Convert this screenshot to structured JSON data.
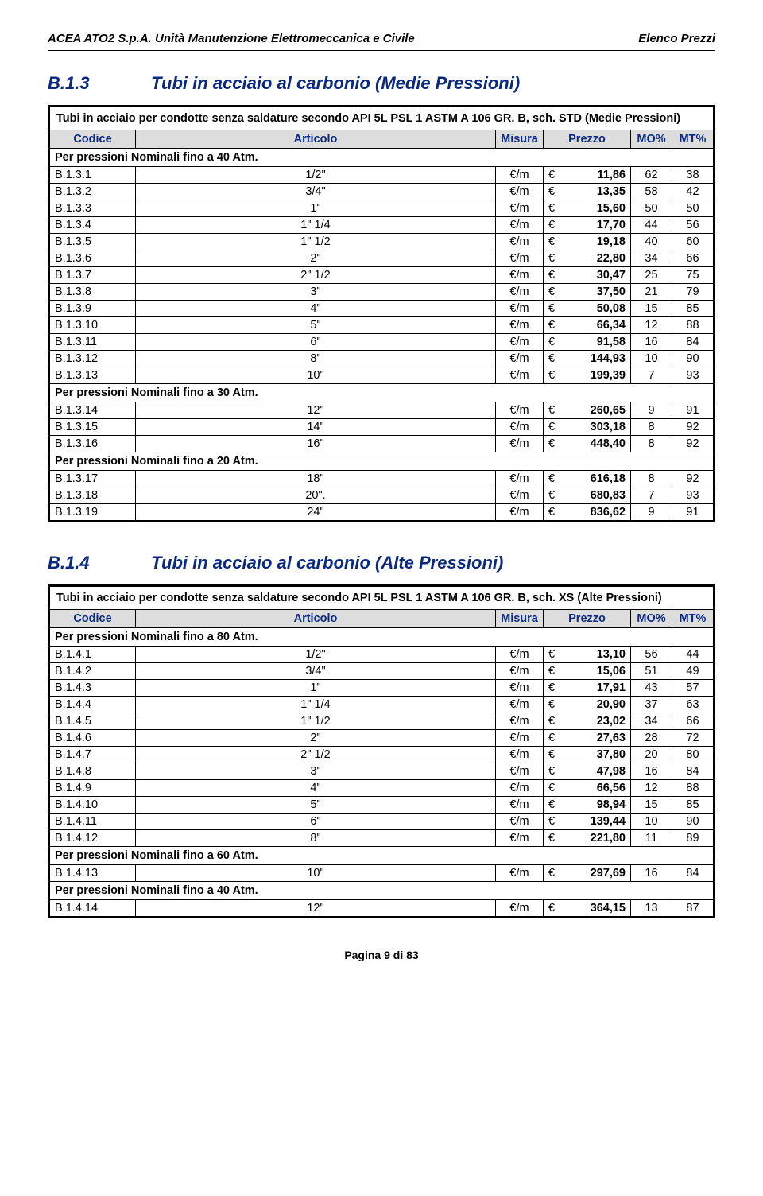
{
  "header": {
    "left": "ACEA ATO2 S.p.A. Unità Manutenzione Elettromeccanica e Civile",
    "right": "Elenco Prezzi"
  },
  "footer": "Pagina 9 di 83",
  "columns": {
    "codice": "Codice",
    "articolo": "Articolo",
    "misura": "Misura",
    "prezzo": "Prezzo",
    "mo": "MO%",
    "mt": "MT%"
  },
  "currency": "€",
  "unit": "€/m",
  "sections": [
    {
      "code": "B.1.3",
      "title": "Tubi in acciaio al carbonio (Medie Pressioni)",
      "description": "Tubi in acciaio per condotte senza saldature secondo API 5L PSL 1 ASTM A 106 GR. B, sch. STD (Medie Pressioni)",
      "groups": [
        {
          "label": "Per pressioni Nominali fino a 40 Atm.",
          "rows": [
            {
              "c": "B.1.3.1",
              "a": "1/2\"",
              "p": "11,86",
              "mo": "62",
              "mt": "38"
            },
            {
              "c": "B.1.3.2",
              "a": "3/4\"",
              "p": "13,35",
              "mo": "58",
              "mt": "42"
            },
            {
              "c": "B.1.3.3",
              "a": "1\"",
              "p": "15,60",
              "mo": "50",
              "mt": "50"
            },
            {
              "c": "B.1.3.4",
              "a": "1\" 1/4",
              "p": "17,70",
              "mo": "44",
              "mt": "56"
            },
            {
              "c": "B.1.3.5",
              "a": "1\" 1/2",
              "p": "19,18",
              "mo": "40",
              "mt": "60"
            },
            {
              "c": "B.1.3.6",
              "a": "2\"",
              "p": "22,80",
              "mo": "34",
              "mt": "66"
            },
            {
              "c": "B.1.3.7",
              "a": "2\" 1/2",
              "p": "30,47",
              "mo": "25",
              "mt": "75"
            },
            {
              "c": "B.1.3.8",
              "a": "3\"",
              "p": "37,50",
              "mo": "21",
              "mt": "79"
            },
            {
              "c": "B.1.3.9",
              "a": "4\"",
              "p": "50,08",
              "mo": "15",
              "mt": "85"
            },
            {
              "c": "B.1.3.10",
              "a": "5\"",
              "p": "66,34",
              "mo": "12",
              "mt": "88"
            },
            {
              "c": "B.1.3.11",
              "a": "6\"",
              "p": "91,58",
              "mo": "16",
              "mt": "84"
            },
            {
              "c": "B.1.3.12",
              "a": "8\"",
              "p": "144,93",
              "mo": "10",
              "mt": "90"
            },
            {
              "c": "B.1.3.13",
              "a": "10\"",
              "p": "199,39",
              "mo": "7",
              "mt": "93"
            }
          ]
        },
        {
          "label": "Per pressioni Nominali fino a 30 Atm.",
          "rows": [
            {
              "c": "B.1.3.14",
              "a": "12\"",
              "p": "260,65",
              "mo": "9",
              "mt": "91"
            },
            {
              "c": "B.1.3.15",
              "a": "14\"",
              "p": "303,18",
              "mo": "8",
              "mt": "92"
            },
            {
              "c": "B.1.3.16",
              "a": "16\"",
              "p": "448,40",
              "mo": "8",
              "mt": "92"
            }
          ]
        },
        {
          "label": "Per pressioni Nominali fino a 20 Atm.",
          "rows": [
            {
              "c": "B.1.3.17",
              "a": "18\"",
              "p": "616,18",
              "mo": "8",
              "mt": "92"
            },
            {
              "c": "B.1.3.18",
              "a": "20\".",
              "p": "680,83",
              "mo": "7",
              "mt": "93"
            },
            {
              "c": "B.1.3.19",
              "a": "24\"",
              "p": "836,62",
              "mo": "9",
              "mt": "91"
            }
          ]
        }
      ]
    },
    {
      "code": "B.1.4",
      "title": "Tubi in acciaio al carbonio (Alte Pressioni)",
      "description": "Tubi in acciaio per condotte senza saldature secondo API 5L PSL 1 ASTM A 106 GR. B, sch. XS (Alte Pressioni)",
      "groups": [
        {
          "label": "Per pressioni Nominali fino a 80 Atm.",
          "rows": [
            {
              "c": "B.1.4.1",
              "a": "1/2\"",
              "p": "13,10",
              "mo": "56",
              "mt": "44"
            },
            {
              "c": "B.1.4.2",
              "a": "3/4\"",
              "p": "15,06",
              "mo": "51",
              "mt": "49"
            },
            {
              "c": "B.1.4.3",
              "a": "1\"",
              "p": "17,91",
              "mo": "43",
              "mt": "57"
            },
            {
              "c": "B.1.4.4",
              "a": "1\" 1/4",
              "p": "20,90",
              "mo": "37",
              "mt": "63"
            },
            {
              "c": "B.1.4.5",
              "a": "1\" 1/2",
              "p": "23,02",
              "mo": "34",
              "mt": "66"
            },
            {
              "c": "B.1.4.6",
              "a": "2\"",
              "p": "27,63",
              "mo": "28",
              "mt": "72"
            },
            {
              "c": "B.1.4.7",
              "a": "2\" 1/2",
              "p": "37,80",
              "mo": "20",
              "mt": "80"
            },
            {
              "c": "B.1.4.8",
              "a": "3\"",
              "p": "47,98",
              "mo": "16",
              "mt": "84"
            },
            {
              "c": "B.1.4.9",
              "a": "4\"",
              "p": "66,56",
              "mo": "12",
              "mt": "88"
            },
            {
              "c": "B.1.4.10",
              "a": "5\"",
              "p": "98,94",
              "mo": "15",
              "mt": "85"
            },
            {
              "c": "B.1.4.11",
              "a": "6\"",
              "p": "139,44",
              "mo": "10",
              "mt": "90"
            },
            {
              "c": "B.1.4.12",
              "a": "8\"",
              "p": "221,80",
              "mo": "11",
              "mt": "89"
            }
          ]
        },
        {
          "label": "Per pressioni Nominali fino a 60 Atm.",
          "rows": [
            {
              "c": "B.1.4.13",
              "a": "10\"",
              "p": "297,69",
              "mo": "16",
              "mt": "84"
            }
          ]
        },
        {
          "label": "Per pressioni Nominali fino a 40 Atm.",
          "rows": [
            {
              "c": "B.1.4.14",
              "a": "12\"",
              "p": "364,15",
              "mo": "13",
              "mt": "87"
            }
          ]
        }
      ]
    }
  ]
}
